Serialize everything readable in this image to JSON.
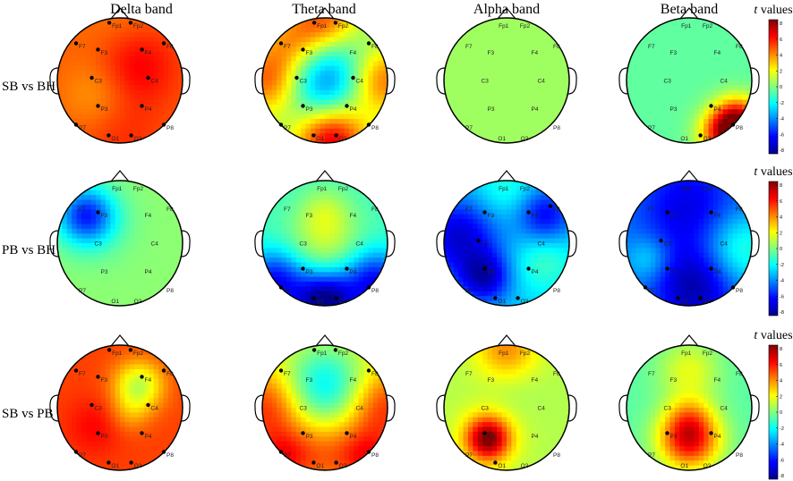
{
  "bands": [
    "Delta band",
    "Theta band",
    "Alpha band",
    "Beta band"
  ],
  "rows": [
    "SB vs BH",
    "PB vs BH",
    "SB vs PB"
  ],
  "colorbar": {
    "title_italic": "t",
    "title_rest": " values",
    "ticks": [
      "8",
      "6",
      "4",
      "2",
      "0",
      "-2",
      "-4",
      "-6",
      "-8"
    ],
    "range": [
      -8,
      8
    ]
  },
  "electrodes": [
    "Fp1",
    "Fp2",
    "F7",
    "F3",
    "F4",
    "F8",
    "C3",
    "C4",
    "P3",
    "P4",
    "P7",
    "P8",
    "O1",
    "O2"
  ],
  "colors": {
    "stops": [
      "#00008f",
      "#0000ff",
      "#0080ff",
      "#00ffff",
      "#80ff80",
      "#ffff00",
      "#ff8000",
      "#ff0000",
      "#800000"
    ],
    "outline": "#000000"
  },
  "maps": [
    [
      {
        "base": 4.6,
        "blobs": [
          [
            0.25,
            -0.25,
            0.2,
            1.8
          ],
          [
            -0.35,
            0.25,
            0.16,
            -1.2
          ],
          [
            0.0,
            -0.8,
            0.25,
            -0.6
          ],
          [
            0.0,
            0.8,
            0.2,
            0.8
          ]
        ],
        "sig": [
          "Fp1",
          "Fp2",
          "F7",
          "F3",
          "F4",
          "F8",
          "C3",
          "C4",
          "P3",
          "P4",
          "P7",
          "P8",
          "O1",
          "O2"
        ]
      },
      {
        "base": 0.2,
        "blobs": [
          [
            0.05,
            -0.2,
            0.28,
            -3.6
          ],
          [
            0.0,
            0.35,
            0.18,
            -2.2
          ],
          [
            -0.9,
            0.0,
            0.15,
            4.5
          ],
          [
            0.9,
            0.0,
            0.15,
            4.5
          ],
          [
            0.0,
            -0.95,
            0.15,
            5.0
          ],
          [
            0.1,
            0.9,
            0.16,
            7.0
          ],
          [
            -0.55,
            -0.6,
            0.12,
            3.0
          ]
        ],
        "sig": [
          "Fp1",
          "Fp2",
          "F7",
          "F3",
          "F8",
          "C3",
          "C4",
          "P3",
          "P4",
          "O1",
          "O2",
          "P7",
          "P8"
        ]
      },
      {
        "base": 0.5,
        "blobs": [],
        "sig": []
      },
      {
        "base": -0.5,
        "blobs": [
          [
            0.6,
            0.85,
            0.08,
            7.5
          ],
          [
            0.8,
            0.6,
            0.06,
            5.0
          ]
        ],
        "sig": [
          "P8",
          "O2",
          "P4"
        ]
      }
    ],
    [
      {
        "base": 0.2,
        "blobs": [
          [
            -0.55,
            -0.45,
            0.1,
            -5.0
          ],
          [
            -0.4,
            -0.3,
            0.16,
            -1.0
          ]
        ],
        "sig": [
          "F3"
        ]
      },
      {
        "base": -1.0,
        "blobs": [
          [
            0.0,
            0.05,
            0.2,
            2.0
          ],
          [
            0.0,
            -0.5,
            0.08,
            1.5
          ],
          [
            0.0,
            0.95,
            0.12,
            -7.5
          ],
          [
            -0.8,
            0.6,
            0.12,
            -5.0
          ],
          [
            0.8,
            0.6,
            0.12,
            -5.0
          ]
        ],
        "sig": [
          "P7",
          "P3",
          "P4",
          "P8",
          "O1",
          "O2"
        ]
      },
      {
        "base": -2.8,
        "blobs": [
          [
            -0.75,
            -0.1,
            0.2,
            -4.0
          ],
          [
            0.6,
            -0.45,
            0.1,
            -3.5
          ],
          [
            -0.35,
            0.55,
            0.08,
            -4.0
          ],
          [
            0.6,
            0.3,
            0.12,
            1.8
          ],
          [
            0.0,
            -0.85,
            0.15,
            1.5
          ]
        ],
        "sig": [
          "F3",
          "F4",
          "F8",
          "P3",
          "C3",
          "O1",
          "O2",
          "P4"
        ]
      },
      {
        "base": -4.0,
        "blobs": [
          [
            0.0,
            -0.55,
            0.3,
            -2.5
          ],
          [
            0.1,
            0.7,
            0.2,
            -3.5
          ],
          [
            0.8,
            0.1,
            0.18,
            3.0
          ],
          [
            -0.65,
            0.25,
            0.06,
            1.8
          ]
        ],
        "sig": [
          "F3",
          "F4",
          "C3",
          "P3",
          "P4",
          "P7",
          "P8",
          "O1",
          "O2"
        ]
      }
    ],
    [
      {
        "base": 5.0,
        "blobs": [
          [
            0.3,
            -0.35,
            0.08,
            -4.0
          ],
          [
            0.15,
            0.1,
            0.05,
            -1.2
          ],
          [
            -0.4,
            0.3,
            0.1,
            1.0
          ]
        ],
        "sig": [
          "Fp1",
          "Fp2",
          "F7",
          "F3",
          "F4",
          "F8",
          "C3",
          "C4",
          "P3",
          "P4",
          "P7",
          "P8",
          "O1",
          "O2"
        ]
      },
      {
        "base": 2.0,
        "blobs": [
          [
            0.0,
            -0.3,
            0.25,
            -4.5
          ],
          [
            0.0,
            0.7,
            0.2,
            2.5
          ],
          [
            -0.9,
            0.0,
            0.18,
            3.5
          ],
          [
            0.9,
            0.0,
            0.18,
            3.5
          ],
          [
            -0.7,
            0.8,
            0.1,
            3.0
          ],
          [
            0.7,
            0.8,
            0.1,
            3.0
          ]
        ],
        "sig": [
          "Fp1",
          "Fp2",
          "F7",
          "F8",
          "P3",
          "P4",
          "P7",
          "P8",
          "O1",
          "O2"
        ]
      },
      {
        "base": 0.8,
        "blobs": [
          [
            0.0,
            -0.95,
            0.12,
            3.0
          ],
          [
            -0.3,
            0.5,
            0.06,
            6.5
          ],
          [
            -0.3,
            0.45,
            0.15,
            1.0
          ],
          [
            0.1,
            -0.25,
            0.1,
            -0.3
          ]
        ],
        "sig": [
          "P3",
          "O1"
        ]
      },
      {
        "base": -0.6,
        "blobs": [
          [
            0.0,
            0.5,
            0.12,
            7.0
          ],
          [
            0.0,
            -0.6,
            0.12,
            2.2
          ],
          [
            0.0,
            0.15,
            0.06,
            1.5
          ]
        ],
        "sig": [
          "P3",
          "P4"
        ]
      }
    ]
  ]
}
